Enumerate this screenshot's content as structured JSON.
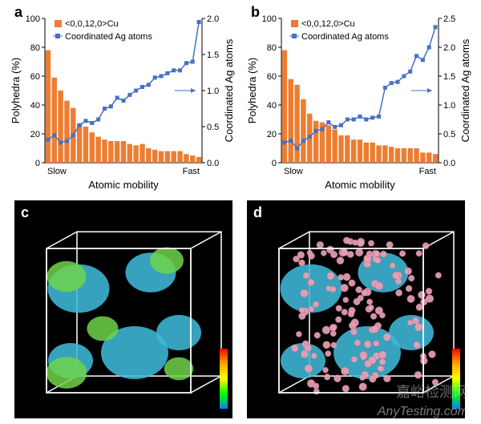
{
  "panels": {
    "a": {
      "label": "a",
      "chart": {
        "type": "bar+line",
        "legend": {
          "bar": "<0,0,12,0>Cu",
          "line": "Coordinated Ag atoms",
          "bar_color": "#ed7d31",
          "line_color": "#4472c4",
          "marker_color": "#4472c4",
          "bar_icon": "■",
          "line_marker": "■"
        },
        "xlabel": "Atomic mobility",
        "ylabel_left": "Polyhedra (%)",
        "ylabel_right": "Coordinated Ag atoms",
        "x_tick_left": "Slow",
        "x_tick_right": "Fast",
        "ylim_left": [
          0,
          100
        ],
        "ytick_step_left": 20,
        "ylim_right": [
          0.0,
          2.0
        ],
        "ytick_step_right": 0.5,
        "bars": [
          78,
          59,
          50,
          43,
          38,
          27,
          25,
          21,
          18,
          16,
          15,
          15,
          15,
          13,
          12,
          13,
          10,
          9,
          8,
          8,
          8,
          8,
          6,
          5,
          4
        ],
        "line": [
          0.32,
          0.38,
          0.28,
          0.3,
          0.38,
          0.52,
          0.58,
          0.55,
          0.6,
          0.75,
          0.78,
          0.9,
          0.86,
          0.94,
          1.0,
          1.05,
          1.08,
          1.18,
          1.2,
          1.24,
          1.28,
          1.28,
          1.38,
          1.4,
          1.95
        ],
        "n": 25,
        "background_color": "#ffffff",
        "axis_color": "#000000",
        "label_fontsize": 13,
        "tick_fontsize": 11,
        "bar_width": 0.82,
        "line_width": 1.5,
        "marker_size": 5
      }
    },
    "b": {
      "label": "b",
      "chart": {
        "type": "bar+line",
        "legend": {
          "bar": "<0,0,12,0>Cu",
          "line": "Coordinated Ag atoms",
          "bar_color": "#ed7d31",
          "line_color": "#4472c4",
          "marker_color": "#4472c4",
          "bar_icon": "■",
          "line_marker": "■"
        },
        "xlabel": "Atomic mobility",
        "ylabel_left": "Polyhedra (%)",
        "ylabel_right": "Coordinated Ag atoms",
        "x_tick_left": "Slow",
        "x_tick_right": "Fast",
        "ylim_left": [
          0,
          100
        ],
        "ytick_step_left": 20,
        "ylim_right": [
          0.0,
          2.5
        ],
        "ytick_step_right": 0.5,
        "bars": [
          78,
          58,
          54,
          44,
          34,
          29,
          28,
          26,
          23,
          19,
          19,
          16,
          16,
          14,
          14,
          12,
          12,
          11,
          10,
          10,
          10,
          10,
          7,
          7,
          6
        ],
        "line": [
          0.35,
          0.38,
          0.25,
          0.38,
          0.45,
          0.55,
          0.58,
          0.7,
          0.62,
          0.65,
          0.75,
          0.75,
          0.8,
          0.75,
          0.78,
          0.8,
          1.3,
          1.38,
          1.4,
          1.5,
          1.58,
          1.85,
          1.78,
          2.0,
          2.35
        ],
        "n": 25,
        "background_color": "#ffffff",
        "axis_color": "#000000",
        "label_fontsize": 13,
        "tick_fontsize": 11,
        "bar_width": 0.82,
        "line_width": 1.5,
        "marker_size": 5
      }
    },
    "c": {
      "label": "c",
      "render": {
        "type": "3d-volume",
        "background": "#000000",
        "wireframe_color": "#ffffff",
        "blobs_cyan": "#3db8d8",
        "blobs_green": "#6fd44a",
        "colorbar_stops": [
          "#ff0000",
          "#ffa500",
          "#ffff00",
          "#00ff00",
          "#0080ff"
        ]
      }
    },
    "d": {
      "label": "d",
      "render": {
        "type": "3d-volume",
        "background": "#000000",
        "wireframe_color": "#ffffff",
        "blobs_cyan": "#3db8d8",
        "spheres_color": "#e8a0b5",
        "colorbar_stops": [
          "#ff0000",
          "#ffa500",
          "#ffff00",
          "#00ff00",
          "#0080ff"
        ]
      }
    }
  },
  "watermark": "AnyTesting.com",
  "watermark_cn": "嘉峪检测网"
}
